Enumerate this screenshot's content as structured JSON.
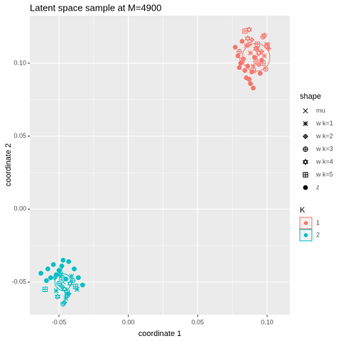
{
  "chart_data": {
    "type": "scatter",
    "title": "Latent space sample at M=4900",
    "x_label": "coordinate 1",
    "y_label": "coordinate 2",
    "xlim": [
      -0.071,
      0.1164
    ],
    "ylim": [
      -0.0724,
      0.1326
    ],
    "xticks": [
      -0.05,
      {
        "value": 0,
        "label": "0.00"
      },
      0.05,
      {
        "value": 0.1,
        "label": "0.10"
      }
    ],
    "yticks": [
      -0.05,
      {
        "value": 0,
        "label": "0.00"
      },
      0.05,
      {
        "value": 0.1,
        "label": "0.10"
      }
    ],
    "grid": true,
    "shape_legend_title": "shape",
    "shapes": [
      "mu",
      "w k=1",
      "w k=2",
      "w k=3",
      "w k=4",
      "w k=5",
      "z"
    ],
    "color_legend_title": "K",
    "groups": [
      {
        "K": "1",
        "color": "#F8766D",
        "circle_radius": 0.01,
        "series": [
          {
            "x": [
              0.092
            ],
            "y": [
              0.104
            ]
          },
          {
            "x": [
              0.093,
              0.098,
              0.085,
              0.09,
              0.1,
              0.088
            ],
            "y": [
              0.11,
              0.105,
              0.112,
              0.098,
              0.113,
              0.107
            ]
          },
          {
            "x": [
              0.089,
              0.096,
              0.083,
              0.101,
              0.094
            ],
            "y": [
              0.116,
              0.108,
              0.103,
              0.11,
              0.099
            ]
          },
          {
            "x": [
              0.087,
              0.097,
              0.092,
              0.08,
              0.099
            ],
            "y": [
              0.113,
              0.118,
              0.101,
              0.108,
              0.096
            ]
          },
          {
            "x": [
              0.087,
              0.098,
              0.094,
              0.086,
              0.092
            ],
            "y": [
              0.123,
              0.119,
              0.107,
              0.117,
              0.11
            ]
          },
          {
            "x": [
              0.084,
              0.097,
              0.093,
              0.09,
              0.1,
              0.082
            ],
            "y": [
              0.122,
              0.1,
              0.113,
              0.095,
              0.112,
              0.102
            ]
          },
          {
            "x": [
              0.077,
              0.081,
              0.085,
              0.079,
              0.088,
              0.084,
              0.09,
              0.095,
              0.086,
              0.082,
              0.091,
              0.08,
              0.096,
              0.089,
              0.087
            ],
            "y": [
              0.111,
              0.1,
              0.09,
              0.105,
              0.086,
              0.095,
              0.083,
              0.093,
              0.098,
              0.115,
              0.104,
              0.097,
              0.102,
              0.094,
              0.089
            ]
          }
        ]
      },
      {
        "K": "2",
        "color": "#00BFC4",
        "circle_radius": 0.006,
        "series": [
          {
            "x": [
              -0.047
            ],
            "y": [
              -0.05
            ]
          },
          {
            "x": [
              -0.041,
              -0.052,
              -0.037,
              -0.045,
              -0.049
            ],
            "y": [
              -0.046,
              -0.056,
              -0.055,
              -0.061,
              -0.042
            ]
          },
          {
            "x": [
              -0.048,
              -0.043,
              -0.053,
              -0.046
            ],
            "y": [
              -0.053,
              -0.058,
              -0.047,
              -0.064
            ]
          },
          {
            "x": [
              -0.05,
              -0.044,
              -0.047,
              -0.04
            ],
            "y": [
              -0.051,
              -0.059,
              -0.065,
              -0.049
            ]
          },
          {
            "x": [
              -0.046,
              -0.049,
              -0.042,
              -0.051
            ],
            "y": [
              -0.055,
              -0.045,
              -0.051,
              -0.06
            ]
          },
          {
            "x": [
              -0.06,
              -0.044,
              -0.048,
              -0.038
            ],
            "y": [
              -0.055,
              -0.057,
              -0.047,
              -0.053
            ]
          },
          {
            "x": [
              -0.063,
              -0.058,
              -0.056,
              -0.05,
              -0.054,
              -0.047,
              -0.043,
              -0.039,
              -0.048,
              -0.036,
              -0.052,
              -0.045,
              -0.033,
              -0.059
            ],
            "y": [
              -0.044,
              -0.041,
              -0.047,
              -0.042,
              -0.038,
              -0.035,
              -0.036,
              -0.041,
              -0.039,
              -0.047,
              -0.045,
              -0.048,
              -0.052,
              -0.049
            ]
          }
        ]
      }
    ]
  }
}
